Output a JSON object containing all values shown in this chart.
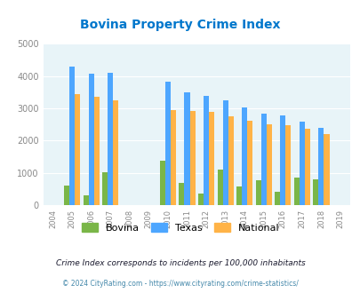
{
  "title": "Bovina Property Crime Index",
  "years": [
    2005,
    2006,
    2007,
    2010,
    2011,
    2012,
    2013,
    2014,
    2015,
    2016,
    2017,
    2018
  ],
  "bovina": [
    600,
    300,
    1020,
    1380,
    700,
    360,
    1100,
    580,
    770,
    420,
    860,
    800
  ],
  "texas": [
    4300,
    4070,
    4110,
    3820,
    3490,
    3380,
    3250,
    3040,
    2850,
    2780,
    2600,
    2400
  ],
  "national": [
    3450,
    3350,
    3250,
    2960,
    2930,
    2900,
    2750,
    2620,
    2510,
    2470,
    2370,
    2200
  ],
  "bar_color_bovina": "#7ab648",
  "bar_color_texas": "#4da6ff",
  "bar_color_national": "#ffb347",
  "bg_color": "#e8f4f8",
  "title_color": "#0077cc",
  "xlim": [
    2003.5,
    2019.5
  ],
  "ylim": [
    0,
    5000
  ],
  "yticks": [
    0,
    1000,
    2000,
    3000,
    4000,
    5000
  ],
  "xtick_labels": [
    "2004",
    "2005",
    "2006",
    "2007",
    "2008",
    "2009",
    "2010",
    "2011",
    "2012",
    "2013",
    "2014",
    "2015",
    "2016",
    "2017",
    "2018",
    "2019"
  ],
  "xtick_positions": [
    2004,
    2005,
    2006,
    2007,
    2008,
    2009,
    2010,
    2011,
    2012,
    2013,
    2014,
    2015,
    2016,
    2017,
    2018,
    2019
  ],
  "legend_labels": [
    "Bovina",
    "Texas",
    "National"
  ],
  "footnote1": "Crime Index corresponds to incidents per 100,000 inhabitants",
  "footnote2": "© 2024 CityRating.com - https://www.cityrating.com/crime-statistics/",
  "footnote1_color": "#1a1a2e",
  "footnote2_color": "#4488aa",
  "bar_width": 0.28
}
